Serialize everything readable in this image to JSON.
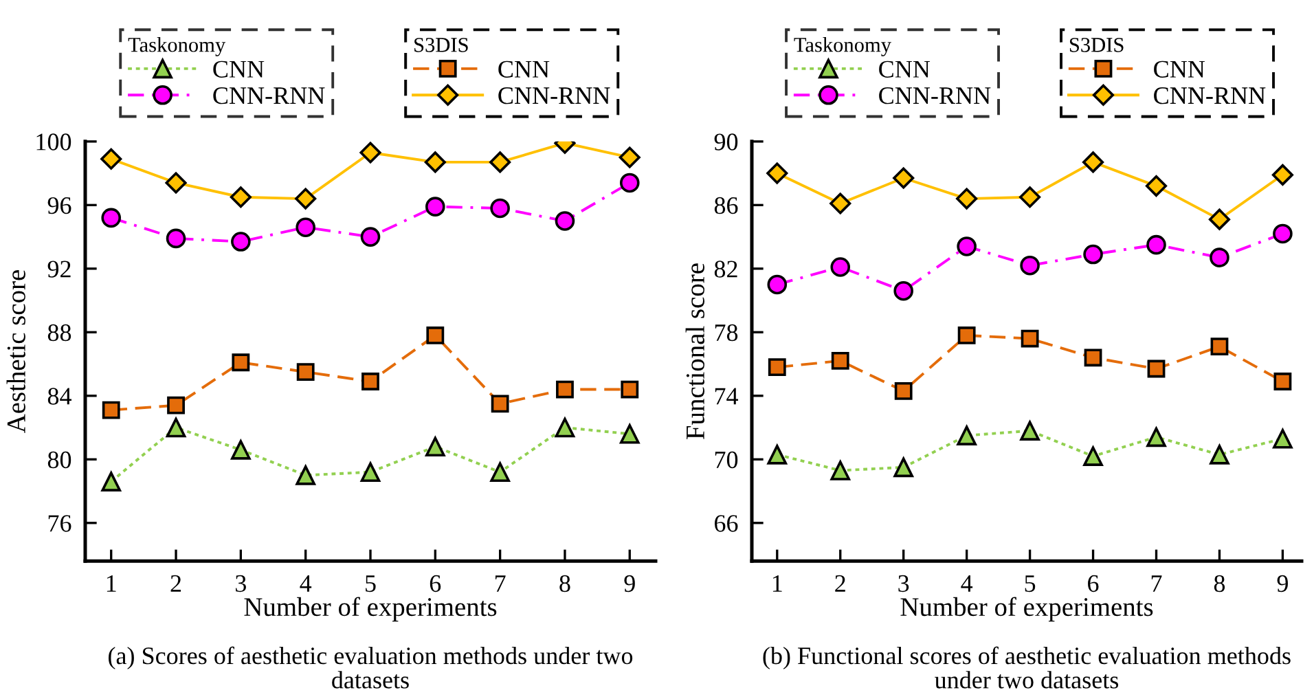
{
  "chart_data": [
    {
      "type": "line",
      "title": "(a) Scores of aesthetic evaluation methods under two datasets",
      "xlabel": "Number of experiments",
      "ylabel": "Aesthetic score",
      "x": [
        1,
        2,
        3,
        4,
        5,
        6,
        7,
        8,
        9
      ],
      "xlim": [
        0.6,
        9.4
      ],
      "xticks": [
        1,
        2,
        3,
        4,
        5,
        6,
        7,
        8,
        9
      ],
      "ylim": [
        73.6,
        100
      ],
      "yticks": [
        76,
        80,
        84,
        88,
        92,
        96,
        100
      ],
      "grid": false,
      "legend": "top",
      "legend_title": [
        "Taskonomy",
        "S3DIS"
      ],
      "series": [
        {
          "name": "CNN",
          "color": "#92d050",
          "marker": "triangle",
          "line_style": "dotted",
          "values": [
            78.6,
            82.0,
            80.6,
            79.0,
            79.2,
            80.8,
            79.2,
            82.0,
            81.6
          ]
        },
        {
          "name": "CNN-RNN",
          "color": "#ff00ff",
          "marker": "circle",
          "line_style": "dashdot",
          "values": [
            95.2,
            93.9,
            93.7,
            94.6,
            94.0,
            95.9,
            95.8,
            95.0,
            97.4
          ]
        },
        {
          "name": "CNN",
          "color": "#e46c0a",
          "marker": "square",
          "line_style": "dashed",
          "values": [
            83.1,
            83.4,
            86.1,
            85.5,
            84.9,
            87.8,
            83.5,
            84.4,
            84.4
          ]
        },
        {
          "name": "CNN-RNN",
          "color": "#ffc000",
          "marker": "diamond",
          "line_style": "solid",
          "values": [
            98.9,
            97.4,
            96.5,
            96.4,
            99.3,
            98.7,
            98.7,
            99.9,
            99.0
          ]
        }
      ]
    },
    {
      "type": "line",
      "title": "(b) Functional scores of aesthetic evaluation methods under two datasets",
      "xlabel": "Number of experiments",
      "ylabel": "Functional score",
      "x": [
        1,
        2,
        3,
        4,
        5,
        6,
        7,
        8,
        9
      ],
      "xlim": [
        0.6,
        9.3
      ],
      "xticks": [
        1,
        2,
        3,
        4,
        5,
        6,
        7,
        8,
        9
      ],
      "ylim": [
        63.6,
        90
      ],
      "yticks": [
        66,
        70,
        74,
        78,
        82,
        86,
        90
      ],
      "grid": false,
      "legend": "top",
      "legend_title": [
        "Taskonomy",
        "S3DIS"
      ],
      "series": [
        {
          "name": "CNN",
          "color": "#92d050",
          "marker": "triangle",
          "line_style": "dotted",
          "values": [
            70.3,
            69.3,
            69.5,
            71.5,
            71.8,
            70.2,
            71.4,
            70.3,
            71.3
          ]
        },
        {
          "name": "CNN-RNN",
          "color": "#ff00ff",
          "marker": "circle",
          "line_style": "dashdot",
          "values": [
            81.0,
            82.1,
            80.6,
            83.4,
            82.2,
            82.9,
            83.5,
            82.7,
            84.2
          ]
        },
        {
          "name": "CNN",
          "color": "#e46c0a",
          "marker": "square",
          "line_style": "dashed",
          "values": [
            75.8,
            76.2,
            74.3,
            77.8,
            77.6,
            76.4,
            75.7,
            77.1,
            74.9
          ]
        },
        {
          "name": "CNN-RNN",
          "color": "#ffc000",
          "marker": "diamond",
          "line_style": "solid",
          "values": [
            88.0,
            86.1,
            87.7,
            86.4,
            86.5,
            88.7,
            87.2,
            85.1,
            87.9
          ]
        }
      ]
    }
  ]
}
